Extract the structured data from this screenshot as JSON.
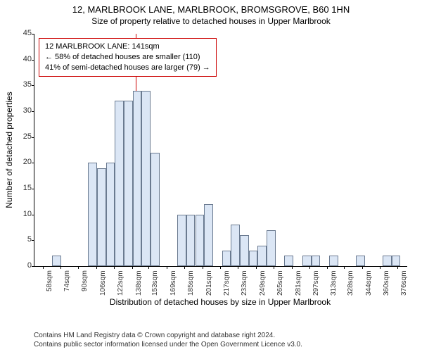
{
  "title": "12, MARLBROOK LANE, MARLBROOK, BROMSGROVE, B60 1HN",
  "subtitle": "Size of property relative to detached houses in Upper Marlbrook",
  "chart": {
    "type": "histogram",
    "ylabel": "Number of detached properties",
    "xlabel": "Distribution of detached houses by size in Upper Marlbrook",
    "ylim_max": 45,
    "ytick_step": 5,
    "yticks": [
      0,
      5,
      10,
      15,
      20,
      25,
      30,
      35,
      40,
      45
    ],
    "xticks": [
      "58sqm",
      "74sqm",
      "90sqm",
      "106sqm",
      "122sqm",
      "138sqm",
      "153sqm",
      "169sqm",
      "185sqm",
      "201sqm",
      "217sqm",
      "233sqm",
      "249sqm",
      "265sqm",
      "281sqm",
      "297sqm",
      "313sqm",
      "328sqm",
      "344sqm",
      "360sqm",
      "376sqm"
    ],
    "bin_start": 58,
    "bin_width_sqm": 8,
    "xrange_sqm": [
      50,
      384
    ],
    "values": [
      0,
      2,
      0,
      0,
      0,
      20,
      19,
      20,
      32,
      32,
      34,
      34,
      22,
      0,
      0,
      10,
      10,
      10,
      12,
      0,
      3,
      8,
      6,
      3,
      4,
      7,
      0,
      2,
      0,
      2,
      2,
      0,
      2,
      0,
      0,
      2,
      0,
      0,
      2,
      2,
      0
    ],
    "bar_color": "#dbe6f5",
    "bar_border_color": "#6a7a90",
    "background_color": "#ffffff",
    "axis_color": "#000000",
    "reference_line_sqm": 141,
    "reference_line_color": "#cc0000",
    "annotation": {
      "line1": "12 MARLBROOK LANE: 141sqm",
      "line2": "← 58% of detached houses are smaller (110)",
      "line3": "41% of semi-detached houses are larger (79) →",
      "border_color": "#cc0000",
      "background_color": "#ffffff",
      "fontsize": 11
    },
    "title_fontsize": 13,
    "label_fontsize": 12,
    "tick_fontsize": 11
  },
  "footer_line1": "Contains HM Land Registry data © Crown copyright and database right 2024.",
  "footer_line2": "Contains public sector information licensed under the Open Government Licence v3.0."
}
